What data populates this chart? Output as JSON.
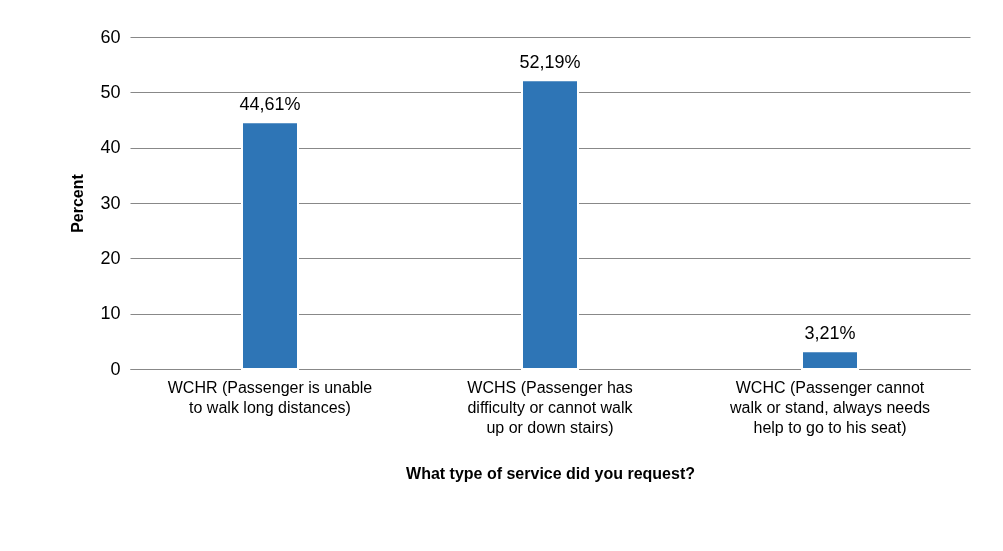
{
  "chart_data": {
    "type": "bar",
    "xlabel": "What type of service did you request?",
    "ylabel": "Percent",
    "categories": [
      "WCHR  (Passenger is unable to walk long distances)",
      "WCHS  (Passenger has difficulty or cannot walk up or down stairs)",
      "WCHC  (Passenger cannot walk or stand, always needs help to go to his seat)"
    ],
    "values": [
      44.61,
      52.19,
      3.21
    ],
    "value_labels": [
      "44,61%",
      "52,19%",
      "3,21%"
    ],
    "color": "#2e75b6",
    "ylim": [
      0,
      60
    ],
    "yticks": [
      0,
      10,
      20,
      30,
      40,
      50,
      60
    ],
    "grid": "y"
  }
}
